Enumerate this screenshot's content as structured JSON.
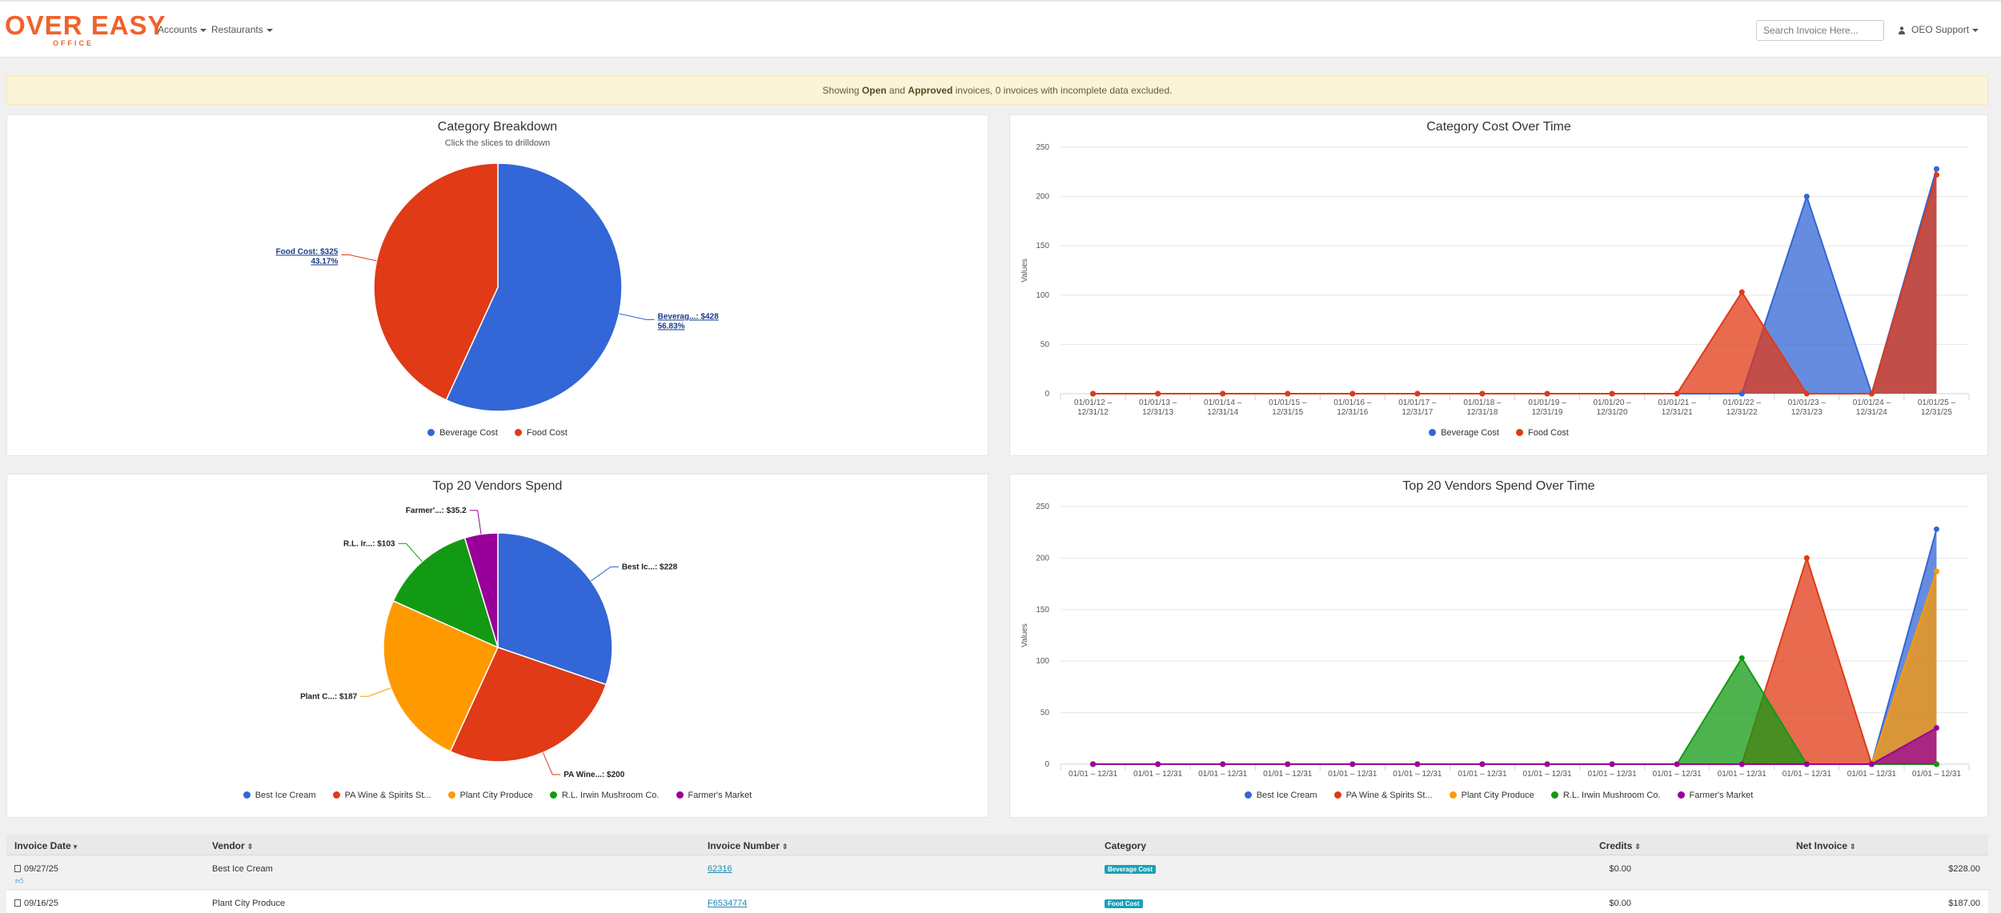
{
  "nav": {
    "logo_main": "OVER EASY",
    "logo_sub": "OFFICE",
    "accounts_label": "Accounts",
    "restaurants_label": "Restaurants",
    "search_placeholder": "Search Invoice Here...",
    "user_label": "OEO Support"
  },
  "alert": {
    "prefix": "Showing ",
    "open": "Open",
    "and": " and ",
    "approved": "Approved",
    "suffix": " invoices, 0 invoices with incomplete data excluded."
  },
  "colors": {
    "blue": "#3366d6",
    "red": "#e03a16",
    "orange": "#ff9900",
    "green": "#139a14",
    "purple": "#990099",
    "link": "#1a8ab5",
    "alert_bg": "#fcf4d9",
    "beverage_badge": "#17a2b8",
    "food_badge": "#17a2b8"
  },
  "category_breakdown": {
    "title": "Category Breakdown",
    "subtitle": "Click the slices to drilldown",
    "chart_data": {
      "type": "pie",
      "slices": [
        {
          "name": "Beverage Cost",
          "value": 428,
          "percent": 56.83,
          "label_line1": "Beverag...: $428",
          "label_line2": "56.83%",
          "color": "#3366d6"
        },
        {
          "name": "Food Cost",
          "value": 325,
          "percent": 43.17,
          "label_line1": "Food Cost: $325",
          "label_line2": "43.17%",
          "color": "#e03a16"
        }
      ]
    },
    "legend": [
      "Beverage Cost",
      "Food Cost"
    ]
  },
  "category_over_time": {
    "title": "Category Cost Over Time",
    "chart_data": {
      "type": "area",
      "ylabel": "Values",
      "ylim": [
        0,
        250
      ],
      "yticks": [
        0,
        50,
        100,
        150,
        200,
        250
      ],
      "categories_line1": [
        "01/01/12 –",
        "01/01/13 –",
        "01/01/14 –",
        "01/01/15 –",
        "01/01/16 –",
        "01/01/17 –",
        "01/01/18 –",
        "01/01/19 –",
        "01/01/20 –",
        "01/01/21 –",
        "01/01/22 –",
        "01/01/23 –",
        "01/01/24 –",
        "01/01/25 –"
      ],
      "categories_line2": [
        "12/31/12",
        "12/31/13",
        "12/31/14",
        "12/31/15",
        "12/31/16",
        "12/31/17",
        "12/31/18",
        "12/31/19",
        "12/31/20",
        "12/31/21",
        "12/31/22",
        "12/31/23",
        "12/31/24",
        "12/31/25"
      ],
      "series": [
        {
          "name": "Beverage Cost",
          "color": "#3366d6",
          "values": [
            0,
            0,
            0,
            0,
            0,
            0,
            0,
            0,
            0,
            0,
            0,
            200,
            0,
            228
          ]
        },
        {
          "name": "Food Cost",
          "color": "#e03a16",
          "values": [
            0,
            0,
            0,
            0,
            0,
            0,
            0,
            0,
            0,
            0,
            103,
            0,
            0,
            222
          ]
        }
      ]
    },
    "legend": [
      "Beverage Cost",
      "Food Cost"
    ]
  },
  "vendors_spend": {
    "title": "Top 20 Vendors Spend",
    "chart_data": {
      "type": "pie",
      "slices": [
        {
          "name": "Best Ice Cream",
          "value": 228,
          "label": "Best Ic...: $228",
          "color": "#3366d6"
        },
        {
          "name": "PA Wine & Spirits St...",
          "value": 200,
          "label": "PA Wine...: $200",
          "color": "#e03a16"
        },
        {
          "name": "Plant City Produce",
          "value": 187,
          "label": "Plant C...: $187",
          "color": "#ff9900"
        },
        {
          "name": "R.L. Irwin Mushroom Co.",
          "value": 103,
          "label": "R.L. Ir...: $103",
          "color": "#139a14"
        },
        {
          "name": "Farmer's Market",
          "value": 35.2,
          "label": "Farmer'...: $35.2",
          "color": "#990099"
        }
      ]
    },
    "legend": [
      "Best Ice Cream",
      "PA Wine & Spirits St...",
      "Plant City Produce",
      "R.L. Irwin Mushroom Co.",
      "Farmer's Market"
    ]
  },
  "vendors_over_time": {
    "title": "Top 20 Vendors Spend Over Time",
    "chart_data": {
      "type": "area",
      "ylabel": "Values",
      "ylim": [
        0,
        250
      ],
      "yticks": [
        0,
        50,
        100,
        150,
        200,
        250
      ],
      "categories": [
        "01/01 – 12/31",
        "01/01 – 12/31",
        "01/01 – 12/31",
        "01/01 – 12/31",
        "01/01 – 12/31",
        "01/01 – 12/31",
        "01/01 – 12/31",
        "01/01 – 12/31",
        "01/01 – 12/31",
        "01/01 – 12/31",
        "01/01 – 12/31",
        "01/01 – 12/31",
        "01/01 – 12/31",
        "01/01 – 12/31"
      ],
      "series": [
        {
          "name": "Best Ice Cream",
          "color": "#3366d6",
          "values": [
            0,
            0,
            0,
            0,
            0,
            0,
            0,
            0,
            0,
            0,
            0,
            0,
            0,
            228
          ]
        },
        {
          "name": "Plant City Produce",
          "color": "#ff9900",
          "values": [
            0,
            0,
            0,
            0,
            0,
            0,
            0,
            0,
            0,
            0,
            0,
            0,
            0,
            187
          ]
        },
        {
          "name": "PA Wine & Spirits St...",
          "color": "#e03a16",
          "values": [
            0,
            0,
            0,
            0,
            0,
            0,
            0,
            0,
            0,
            0,
            0,
            200,
            0,
            0
          ]
        },
        {
          "name": "R.L. Irwin Mushroom Co.",
          "color": "#139a14",
          "values": [
            0,
            0,
            0,
            0,
            0,
            0,
            0,
            0,
            0,
            0,
            103,
            0,
            0,
            0
          ]
        },
        {
          "name": "Farmer's Market",
          "color": "#990099",
          "values": [
            0,
            0,
            0,
            0,
            0,
            0,
            0,
            0,
            0,
            0,
            0,
            0,
            0,
            35.2
          ]
        }
      ]
    },
    "legend": [
      "Best Ice Cream",
      "PA Wine & Spirits St...",
      "Plant City Produce",
      "R.L. Irwin Mushroom Co.",
      "Farmer's Market"
    ]
  },
  "table": {
    "headers": {
      "invoice_date": "Invoice Date",
      "vendor": "Vendor",
      "invoice_number": "Invoice Number",
      "category": "Category",
      "credits": "Credits",
      "net_invoice": "Net Invoice"
    },
    "rows": [
      {
        "date": "09/27/25",
        "vendor": "Best Ice Cream",
        "invoice_number": "62316",
        "category": "Beverage Cost",
        "credits": "$0.00",
        "net": "$228.00"
      },
      {
        "date": "09/16/25",
        "vendor": "Plant City Produce",
        "invoice_number": "F6534774",
        "category": "Food Cost",
        "credits": "$0.00",
        "net": "$187.00"
      }
    ]
  }
}
